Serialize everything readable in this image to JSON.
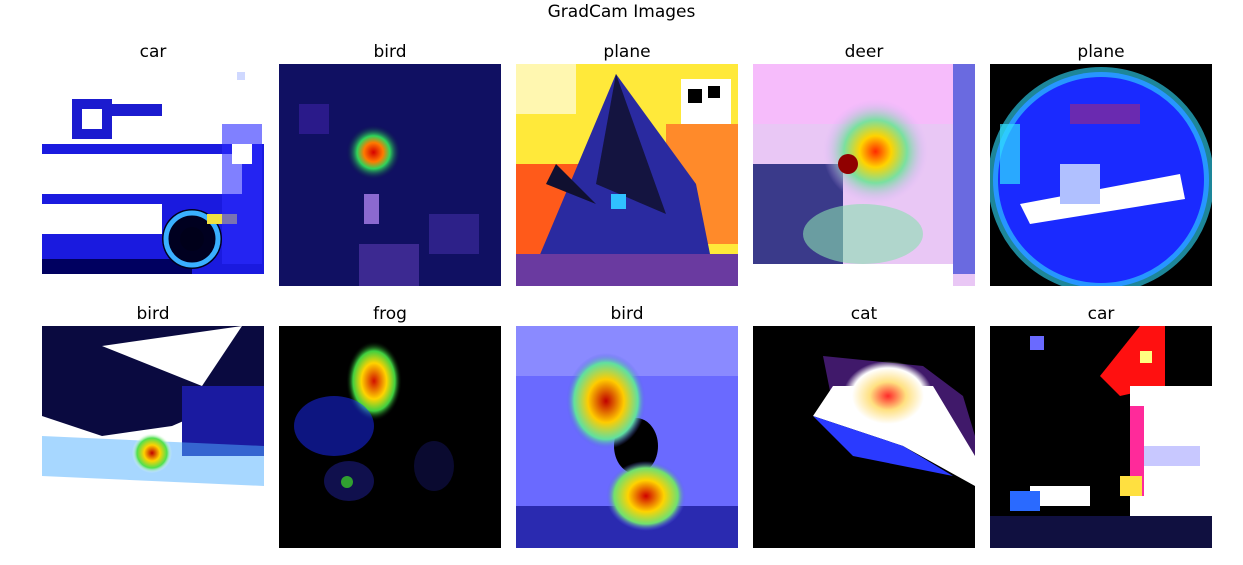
{
  "figure": {
    "title": "GradCam Images"
  },
  "panels": [
    {
      "label": "car"
    },
    {
      "label": "bird"
    },
    {
      "label": "plane"
    },
    {
      "label": "deer"
    },
    {
      "label": "plane"
    },
    {
      "label": "bird"
    },
    {
      "label": "frog"
    },
    {
      "label": "bird"
    },
    {
      "label": "cat"
    },
    {
      "label": "car"
    }
  ]
}
